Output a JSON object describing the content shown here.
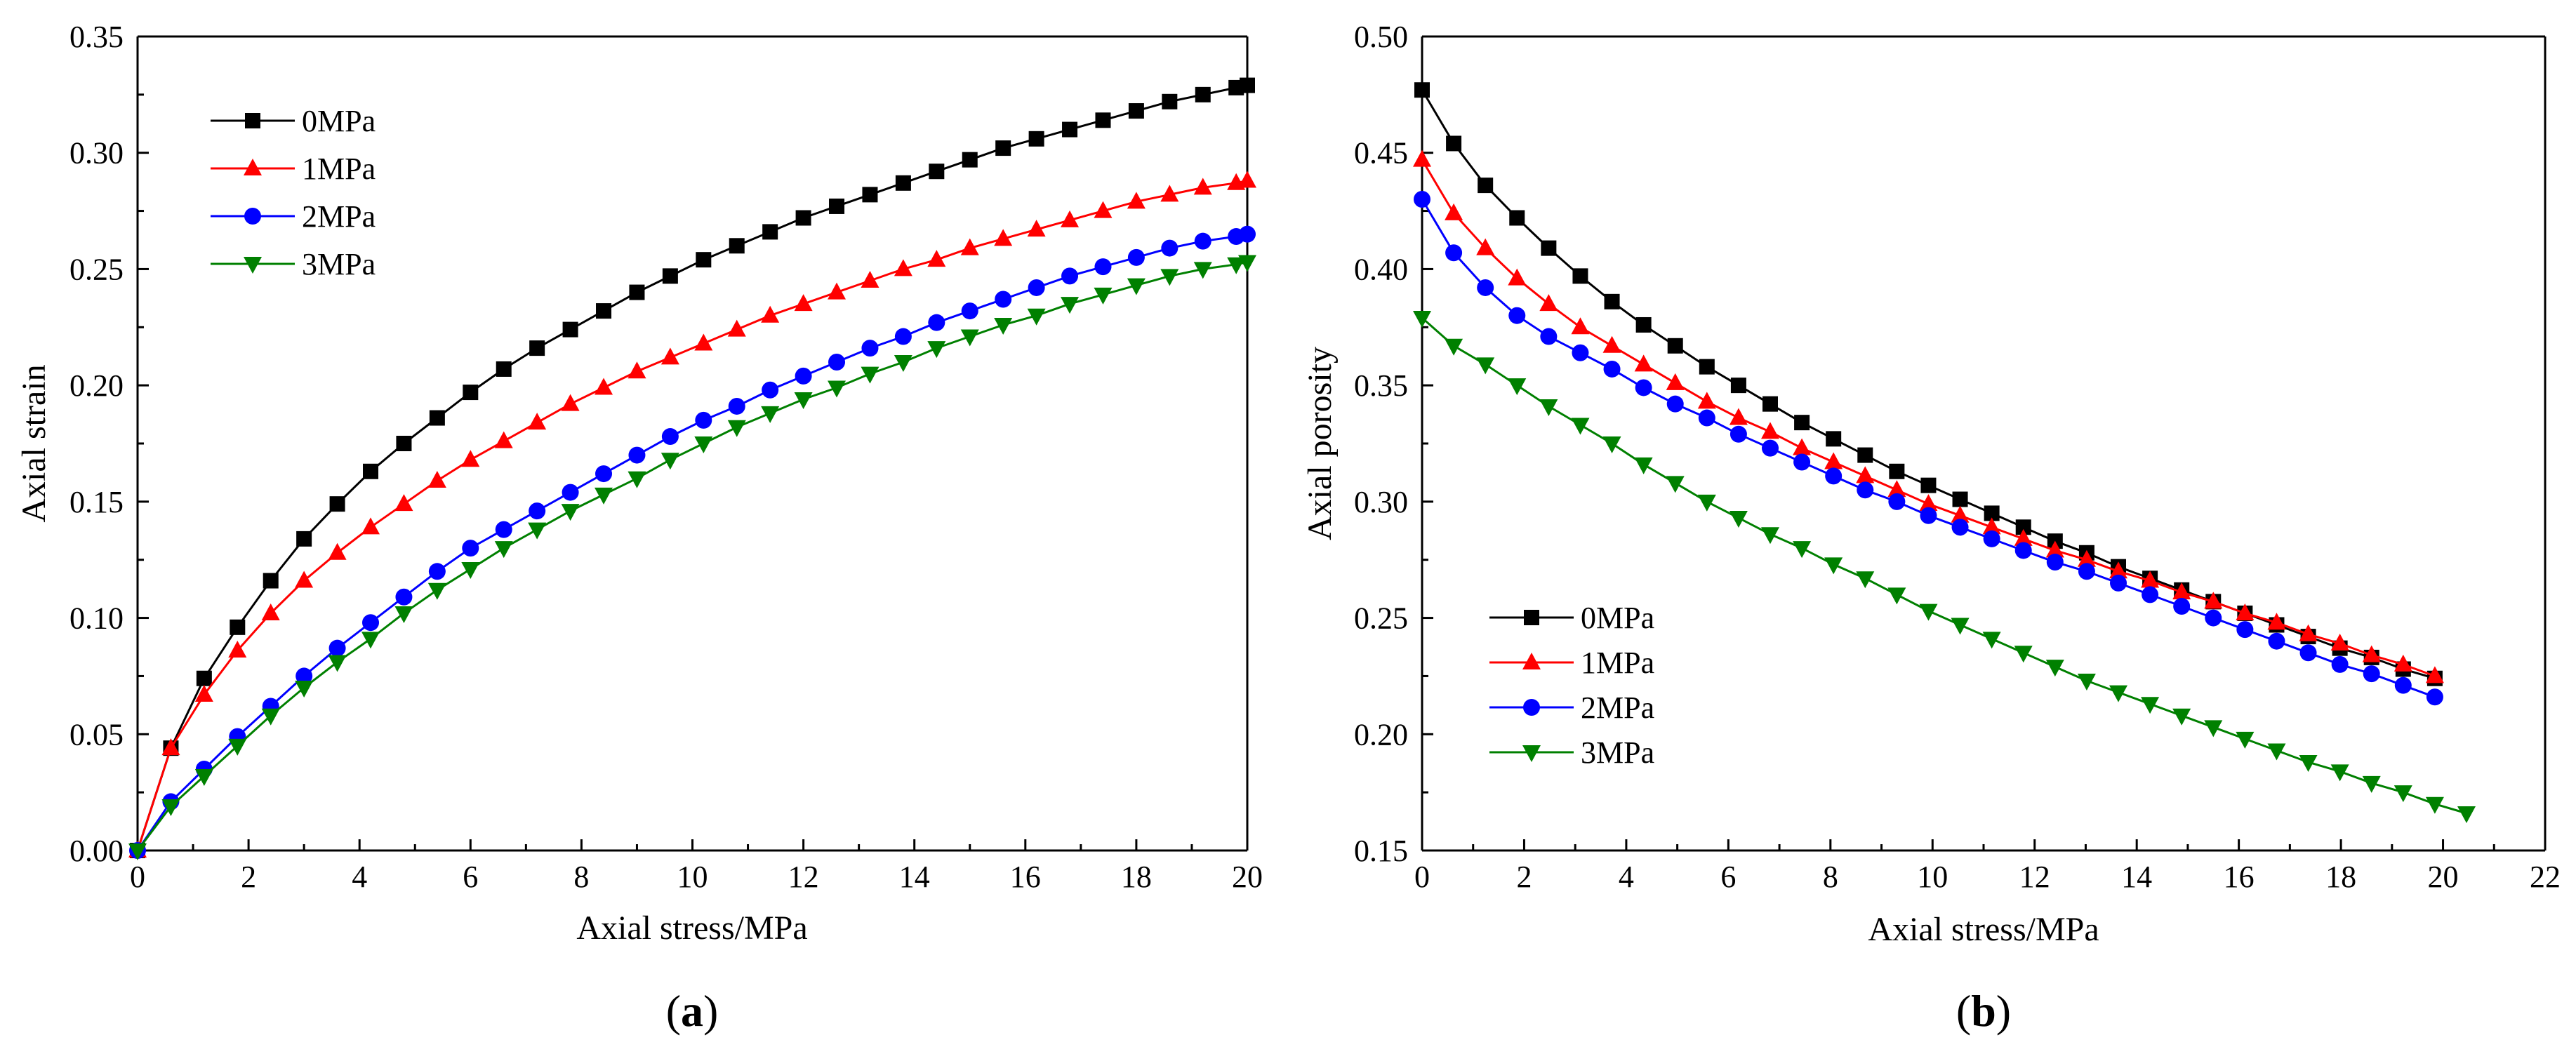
{
  "panels": [
    {
      "label_open": "(",
      "label_letter": "a",
      "label_close": ")",
      "xlabel": "Axial stress/MPa",
      "ylabel": "Axial strain",
      "xticks": [
        "0",
        "2",
        "4",
        "6",
        "8",
        "10",
        "12",
        "14",
        "16",
        "18",
        "20"
      ],
      "yticks": [
        "0.00",
        "0.05",
        "0.10",
        "0.15",
        "0.20",
        "0.25",
        "0.30",
        "0.35"
      ]
    },
    {
      "label_open": "(",
      "label_letter": "b",
      "label_close": ")",
      "xlabel": "Axial stress/MPa",
      "ylabel": "Axial porosity",
      "xticks": [
        "0",
        "2",
        "4",
        "6",
        "8",
        "10",
        "12",
        "14",
        "16",
        "18",
        "20",
        "22"
      ],
      "yticks": [
        "0.15",
        "0.20",
        "0.25",
        "0.30",
        "0.35",
        "0.40",
        "0.45",
        "0.50"
      ]
    }
  ],
  "chart_data": [
    {
      "type": "line",
      "title": "(a)",
      "xlabel": "Axial stress/MPa",
      "ylabel": "Axial strain",
      "xlim": [
        0,
        20
      ],
      "ylim": [
        0,
        0.35
      ],
      "legend_position": "top-left",
      "x": [
        0,
        0.6,
        1.2,
        1.8,
        2.4,
        3.0,
        3.6,
        4.2,
        4.8,
        5.4,
        6.0,
        6.6,
        7.2,
        7.8,
        8.4,
        9.0,
        9.6,
        10.2,
        10.8,
        11.4,
        12.0,
        12.6,
        13.2,
        13.8,
        14.4,
        15.0,
        15.6,
        16.2,
        16.8,
        17.4,
        18.0,
        18.6,
        19.2,
        19.8,
        20.0
      ],
      "series": [
        {
          "name": "0MPa",
          "color": "#000000",
          "marker": "square",
          "values": [
            0,
            0.044,
            0.074,
            0.096,
            0.116,
            0.134,
            0.149,
            0.163,
            0.175,
            0.186,
            0.197,
            0.207,
            0.216,
            0.224,
            0.232,
            0.24,
            0.247,
            0.254,
            0.26,
            0.266,
            0.272,
            0.277,
            0.282,
            0.287,
            0.292,
            0.297,
            0.302,
            0.306,
            0.31,
            0.314,
            0.318,
            0.322,
            0.325,
            0.328,
            0.329
          ]
        },
        {
          "name": "1MPa",
          "color": "#ff0000",
          "marker": "triangle-up",
          "values": [
            0,
            0.044,
            0.067,
            0.086,
            0.102,
            0.116,
            0.128,
            0.139,
            0.149,
            0.159,
            0.168,
            0.176,
            0.184,
            0.192,
            0.199,
            0.206,
            0.212,
            0.218,
            0.224,
            0.23,
            0.235,
            0.24,
            0.245,
            0.25,
            0.254,
            0.259,
            0.263,
            0.267,
            0.271,
            0.275,
            0.279,
            0.282,
            0.285,
            0.287,
            0.288
          ]
        },
        {
          "name": "2MPa",
          "color": "#0000ff",
          "marker": "circle",
          "values": [
            0,
            0.021,
            0.035,
            0.049,
            0.062,
            0.075,
            0.087,
            0.098,
            0.109,
            0.12,
            0.13,
            0.138,
            0.146,
            0.154,
            0.162,
            0.17,
            0.178,
            0.185,
            0.191,
            0.198,
            0.204,
            0.21,
            0.216,
            0.221,
            0.227,
            0.232,
            0.237,
            0.242,
            0.247,
            0.251,
            0.255,
            0.259,
            0.262,
            0.264,
            0.265
          ]
        },
        {
          "name": "3MPa",
          "color": "#008000",
          "marker": "triangle-down",
          "values": [
            0,
            0.019,
            0.032,
            0.045,
            0.058,
            0.07,
            0.081,
            0.091,
            0.102,
            0.112,
            0.121,
            0.13,
            0.138,
            0.146,
            0.153,
            0.16,
            0.168,
            0.175,
            0.182,
            0.188,
            0.194,
            0.199,
            0.205,
            0.21,
            0.216,
            0.221,
            0.226,
            0.23,
            0.235,
            0.239,
            0.243,
            0.247,
            0.25,
            0.252,
            0.253
          ]
        }
      ]
    },
    {
      "type": "line",
      "title": "(b)",
      "xlabel": "Axial stress/MPa",
      "ylabel": "Axial porosity",
      "xlim": [
        0,
        22
      ],
      "ylim": [
        0.15,
        0.5
      ],
      "legend_position": "bottom-left",
      "series": [
        {
          "name": "0MPa",
          "color": "#000000",
          "marker": "square",
          "x": [
            0,
            0.62,
            1.24,
            1.86,
            2.48,
            3.1,
            3.72,
            4.34,
            4.96,
            5.58,
            6.2,
            6.82,
            7.44,
            8.06,
            8.68,
            9.3,
            9.92,
            10.54,
            11.16,
            11.78,
            12.4,
            13.02,
            13.64,
            14.26,
            14.88,
            15.5,
            16.12,
            16.74,
            17.36,
            17.98,
            18.6,
            19.22,
            19.84
          ],
          "values": [
            0.477,
            0.454,
            0.436,
            0.422,
            0.409,
            0.397,
            0.386,
            0.376,
            0.367,
            0.358,
            0.35,
            0.342,
            0.334,
            0.327,
            0.32,
            0.313,
            0.307,
            0.301,
            0.295,
            0.289,
            0.283,
            0.278,
            0.272,
            0.267,
            0.262,
            0.257,
            0.252,
            0.247,
            0.242,
            0.237,
            0.233,
            0.228,
            0.224
          ]
        },
        {
          "name": "1MPa",
          "color": "#ff0000",
          "marker": "triangle-up",
          "x": [
            0,
            0.62,
            1.24,
            1.86,
            2.48,
            3.1,
            3.72,
            4.34,
            4.96,
            5.58,
            6.2,
            6.82,
            7.44,
            8.06,
            8.68,
            9.3,
            9.92,
            10.54,
            11.16,
            11.78,
            12.4,
            13.02,
            13.64,
            14.26,
            14.88,
            15.5,
            16.12,
            16.74,
            17.36,
            17.98,
            18.6,
            19.22,
            19.84
          ],
          "values": [
            0.447,
            0.424,
            0.409,
            0.396,
            0.385,
            0.375,
            0.367,
            0.359,
            0.351,
            0.343,
            0.336,
            0.33,
            0.323,
            0.317,
            0.311,
            0.305,
            0.299,
            0.294,
            0.289,
            0.284,
            0.279,
            0.275,
            0.27,
            0.266,
            0.261,
            0.257,
            0.252,
            0.248,
            0.243,
            0.239,
            0.234,
            0.23,
            0.225
          ]
        },
        {
          "name": "2MPa",
          "color": "#0000ff",
          "marker": "circle",
          "x": [
            0,
            0.62,
            1.24,
            1.86,
            2.48,
            3.1,
            3.72,
            4.34,
            4.96,
            5.58,
            6.2,
            6.82,
            7.44,
            8.06,
            8.68,
            9.3,
            9.92,
            10.54,
            11.16,
            11.78,
            12.4,
            13.02,
            13.64,
            14.26,
            14.88,
            15.5,
            16.12,
            16.74,
            17.36,
            17.98,
            18.6,
            19.22,
            19.84
          ],
          "values": [
            0.43,
            0.407,
            0.392,
            0.38,
            0.371,
            0.364,
            0.357,
            0.349,
            0.342,
            0.336,
            0.329,
            0.323,
            0.317,
            0.311,
            0.305,
            0.3,
            0.294,
            0.289,
            0.284,
            0.279,
            0.274,
            0.27,
            0.265,
            0.26,
            0.255,
            0.25,
            0.245,
            0.24,
            0.235,
            0.23,
            0.226,
            0.221,
            0.216
          ]
        },
        {
          "name": "3MPa",
          "color": "#008000",
          "marker": "triangle-down",
          "x": [
            0,
            0.62,
            1.24,
            1.86,
            2.48,
            3.1,
            3.72,
            4.34,
            4.96,
            5.58,
            6.2,
            6.82,
            7.44,
            8.06,
            8.68,
            9.3,
            9.92,
            10.54,
            11.16,
            11.78,
            12.4,
            13.02,
            13.64,
            14.26,
            14.88,
            15.5,
            16.12,
            16.74,
            17.36,
            17.98,
            18.6,
            19.22,
            19.84,
            20.46
          ],
          "values": [
            0.379,
            0.367,
            0.359,
            0.35,
            0.341,
            0.333,
            0.325,
            0.316,
            0.308,
            0.3,
            0.293,
            0.286,
            0.28,
            0.273,
            0.267,
            0.26,
            0.253,
            0.247,
            0.241,
            0.235,
            0.229,
            0.223,
            0.218,
            0.213,
            0.208,
            0.203,
            0.198,
            0.193,
            0.188,
            0.184,
            0.179,
            0.175,
            0.17,
            0.166
          ]
        }
      ]
    }
  ]
}
